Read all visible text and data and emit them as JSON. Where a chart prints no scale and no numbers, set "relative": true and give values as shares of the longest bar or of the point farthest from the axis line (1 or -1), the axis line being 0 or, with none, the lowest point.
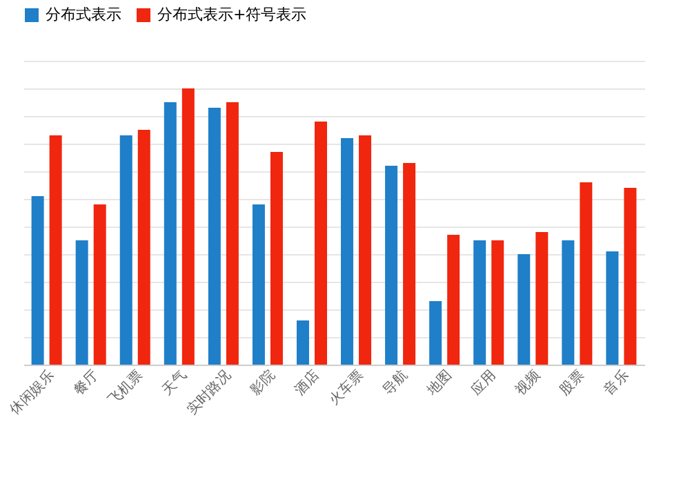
{
  "chart_data": {
    "type": "bar",
    "relative": true,
    "grid": true,
    "legend": "top",
    "categories": [
      "休闲娱乐",
      "餐厅",
      "飞机票",
      "天气",
      "实时路况",
      "影院",
      "酒店",
      "火车票",
      "导航",
      "地图",
      "应用",
      "视频",
      "股票",
      "音乐"
    ],
    "series": [
      {
        "name": "分布式表示",
        "color": "#1f7fc8",
        "values": [
          0.61,
          0.45,
          0.83,
          0.95,
          0.93,
          0.58,
          0.16,
          0.82,
          0.72,
          0.23,
          0.45,
          0.4,
          0.45,
          0.41
        ]
      },
      {
        "name": "分布式表示+符号表示",
        "color": "#f0260f",
        "values": [
          0.83,
          0.58,
          0.85,
          1,
          0.95,
          0.77,
          0.88,
          0.83,
          0.73,
          0.47,
          0.45,
          0.48,
          0.66,
          0.64
        ]
      }
    ]
  }
}
